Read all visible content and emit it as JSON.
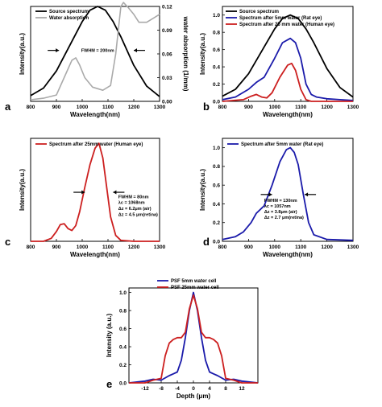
{
  "chart_data": [
    {
      "panel": "a",
      "type": "line",
      "xlabel": "Wavelength(nm)",
      "ylabel": "Intensity(a.u.)",
      "ylabel2": "water absorption (1/mm)",
      "xlim": [
        800,
        1300
      ],
      "ylim": [
        0,
        1.0
      ],
      "ylim2": [
        0,
        0.12
      ],
      "xticks": [
        800,
        900,
        1000,
        1100,
        1200,
        1300
      ],
      "yticks": [],
      "yticks2": [
        0.0,
        0.03,
        0.06,
        0.09,
        0.12
      ],
      "legend": "top-left",
      "annotations": [
        {
          "text": "FWHM = 200nm",
          "x": 1060,
          "y": 0.52,
          "arrows": [
            910,
            1200
          ]
        }
      ],
      "series": [
        {
          "name": "Source spectrum",
          "color": "#000000",
          "axis": "left",
          "x": [
            800,
            850,
            900,
            950,
            1000,
            1030,
            1060,
            1090,
            1120,
            1150,
            1200,
            1250,
            1300
          ],
          "y": [
            0.06,
            0.14,
            0.32,
            0.58,
            0.84,
            0.96,
            1.0,
            0.96,
            0.84,
            0.68,
            0.38,
            0.16,
            0.05
          ]
        },
        {
          "name": "Water absorption",
          "color": "#aaaaaa",
          "axis": "right",
          "x": [
            800,
            850,
            900,
            930,
            960,
            975,
            990,
            1010,
            1040,
            1080,
            1110,
            1130,
            1150,
            1160,
            1180,
            1200,
            1220,
            1250,
            1275,
            1300
          ],
          "y": [
            0.002,
            0.004,
            0.008,
            0.03,
            0.052,
            0.055,
            0.046,
            0.03,
            0.018,
            0.014,
            0.02,
            0.06,
            0.12,
            0.125,
            0.118,
            0.11,
            0.1,
            0.1,
            0.105,
            0.11
          ]
        }
      ]
    },
    {
      "panel": "b",
      "type": "line",
      "xlabel": "Wavelength(nm)",
      "ylabel": "Intensity(a.u.)",
      "xlim": [
        800,
        1300
      ],
      "ylim": [
        0,
        1.1
      ],
      "xticks": [
        800,
        900,
        1000,
        1100,
        1200,
        1300
      ],
      "yticks": [
        0.0,
        0.2,
        0.4,
        0.6,
        0.8,
        1.0
      ],
      "yticks_text": [
        "0.0",
        "0.2",
        "0.4",
        "0.6",
        "0.8",
        "1.0"
      ],
      "legend": "top-left",
      "series": [
        {
          "name": "Source spectrum",
          "color": "#000000",
          "x": [
            800,
            850,
            900,
            950,
            1000,
            1030,
            1060,
            1090,
            1120,
            1150,
            1200,
            1250,
            1300
          ],
          "y": [
            0.06,
            0.14,
            0.32,
            0.58,
            0.84,
            0.96,
            1.0,
            0.96,
            0.84,
            0.68,
            0.38,
            0.16,
            0.05
          ]
        },
        {
          "name": "Spectrum after 5mm water (Rat eye)",
          "color": "#1a1aaa",
          "x": [
            800,
            850,
            900,
            930,
            960,
            1000,
            1030,
            1060,
            1080,
            1100,
            1120,
            1140,
            1160,
            1200,
            1250,
            1300
          ],
          "y": [
            0.02,
            0.05,
            0.14,
            0.22,
            0.28,
            0.5,
            0.68,
            0.73,
            0.68,
            0.5,
            0.2,
            0.08,
            0.05,
            0.03,
            0.02,
            0.01
          ]
        },
        {
          "name": "Spectrum after 25 mm water (Human eye)",
          "color": "#cc1f1f",
          "x": [
            800,
            880,
            910,
            930,
            950,
            970,
            990,
            1020,
            1050,
            1065,
            1080,
            1100,
            1120,
            1140,
            1200,
            1300
          ],
          "y": [
            0.0,
            0.02,
            0.06,
            0.08,
            0.05,
            0.04,
            0.1,
            0.28,
            0.42,
            0.44,
            0.36,
            0.14,
            0.02,
            0.0,
            0.0,
            0.0
          ]
        }
      ]
    },
    {
      "panel": "c",
      "type": "line",
      "xlabel": "Wavelength(nm)",
      "ylabel": "Intensity(a.u.)",
      "xlim": [
        800,
        1300
      ],
      "ylim": [
        0,
        1.05
      ],
      "xticks": [
        800,
        900,
        1000,
        1100,
        1200,
        1300
      ],
      "yticks": [],
      "legend": "top-left",
      "annotations": [
        {
          "text": "FWHM = 80nm",
          "x": 1140,
          "y": 0.44
        },
        {
          "text": "λc = 1068nm",
          "x": 1140,
          "y": 0.38
        },
        {
          "text": "Δz = 6.2μm (air)",
          "x": 1140,
          "y": 0.32
        },
        {
          "text": "Δz = 4.5 μm(retina)",
          "x": 1140,
          "y": 0.26
        }
      ],
      "series": [
        {
          "name": "Spectrum after 25mm water (Human eye)",
          "color": "#cc1f1f",
          "x": [
            800,
            850,
            880,
            900,
            915,
            930,
            945,
            960,
            975,
            990,
            1010,
            1030,
            1050,
            1065,
            1080,
            1095,
            1110,
            1130,
            1150,
            1200,
            1300
          ],
          "y": [
            0.0,
            0.0,
            0.03,
            0.1,
            0.17,
            0.18,
            0.13,
            0.11,
            0.16,
            0.3,
            0.55,
            0.78,
            0.95,
            1.0,
            0.85,
            0.55,
            0.25,
            0.06,
            0.01,
            0.0,
            0.0
          ]
        }
      ]
    },
    {
      "panel": "d",
      "type": "line",
      "xlabel": "Wavelength(nm)",
      "ylabel": "Intensity(a.u.)",
      "xlim": [
        800,
        1300
      ],
      "ylim": [
        0,
        1.1
      ],
      "xticks": [
        800,
        900,
        1000,
        1100,
        1200,
        1300
      ],
      "yticks": [
        0.0,
        0.2,
        0.4,
        0.6,
        0.8,
        1.0
      ],
      "yticks_text": [
        "0.0",
        "0.2",
        "0.4",
        "0.6",
        "0.8",
        "1.0"
      ],
      "legend": "top-left",
      "annotations": [
        {
          "text": "FWHM = 130nm",
          "x": 960,
          "y": 0.42
        },
        {
          "text": "λc = 1057nm",
          "x": 960,
          "y": 0.36
        },
        {
          "text": "Δz = 3.8μm (air)",
          "x": 960,
          "y": 0.3
        },
        {
          "text": "Δz = 2.7 μm(retina)",
          "x": 960,
          "y": 0.24
        }
      ],
      "series": [
        {
          "name": "Spectrum after 5mm water (Rat eye)",
          "color": "#1a1aaa",
          "x": [
            800,
            850,
            880,
            910,
            930,
            960,
            990,
            1020,
            1045,
            1060,
            1075,
            1090,
            1110,
            1130,
            1150,
            1200,
            1300
          ],
          "y": [
            0.02,
            0.05,
            0.1,
            0.2,
            0.3,
            0.38,
            0.6,
            0.85,
            0.98,
            1.0,
            0.95,
            0.82,
            0.5,
            0.2,
            0.07,
            0.02,
            0.01
          ]
        }
      ]
    },
    {
      "panel": "e",
      "type": "line",
      "xlabel": "Depth (μm)",
      "ylabel": "Intensity (a.u.)",
      "xlim": [
        -16,
        16
      ],
      "ylim": [
        0,
        1.05
      ],
      "xticks": [
        -12,
        -8,
        -4,
        0,
        4,
        8,
        12
      ],
      "xticks_text": [
        "-12",
        "-8",
        "-4",
        "0",
        "4",
        "8",
        "12"
      ],
      "yticks": [
        0.0,
        0.2,
        0.4,
        0.6,
        0.8,
        1.0
      ],
      "yticks_text": [
        "0.0",
        "0.2",
        "0.4",
        "0.6",
        "0.8",
        "1.0"
      ],
      "legend": "top-right",
      "series": [
        {
          "name": "PSF 5mm water cell",
          "color": "#1a1aaa",
          "x": [
            -16,
            -12,
            -10,
            -8,
            -6,
            -5,
            -4,
            -3,
            -2,
            -1,
            0,
            1,
            2,
            3,
            4,
            5,
            6,
            8,
            10,
            12,
            16
          ],
          "y": [
            0.0,
            0.02,
            0.04,
            0.03,
            0.08,
            0.1,
            0.12,
            0.25,
            0.5,
            0.8,
            1.0,
            0.8,
            0.5,
            0.25,
            0.12,
            0.1,
            0.08,
            0.03,
            0.04,
            0.02,
            0.0
          ]
        },
        {
          "name": "PSF 25mm water cell",
          "color": "#cc1f1f",
          "x": [
            -16,
            -12,
            -10,
            -8,
            -7,
            -6,
            -5,
            -4,
            -3,
            -2,
            -1,
            0,
            1,
            2,
            3,
            4,
            5,
            6,
            7,
            8,
            10,
            12,
            16
          ],
          "y": [
            0.0,
            0.0,
            0.03,
            0.05,
            0.3,
            0.44,
            0.48,
            0.5,
            0.5,
            0.56,
            0.82,
            0.97,
            0.82,
            0.56,
            0.5,
            0.5,
            0.48,
            0.44,
            0.3,
            0.05,
            0.03,
            0.0,
            0.0
          ]
        }
      ]
    }
  ]
}
